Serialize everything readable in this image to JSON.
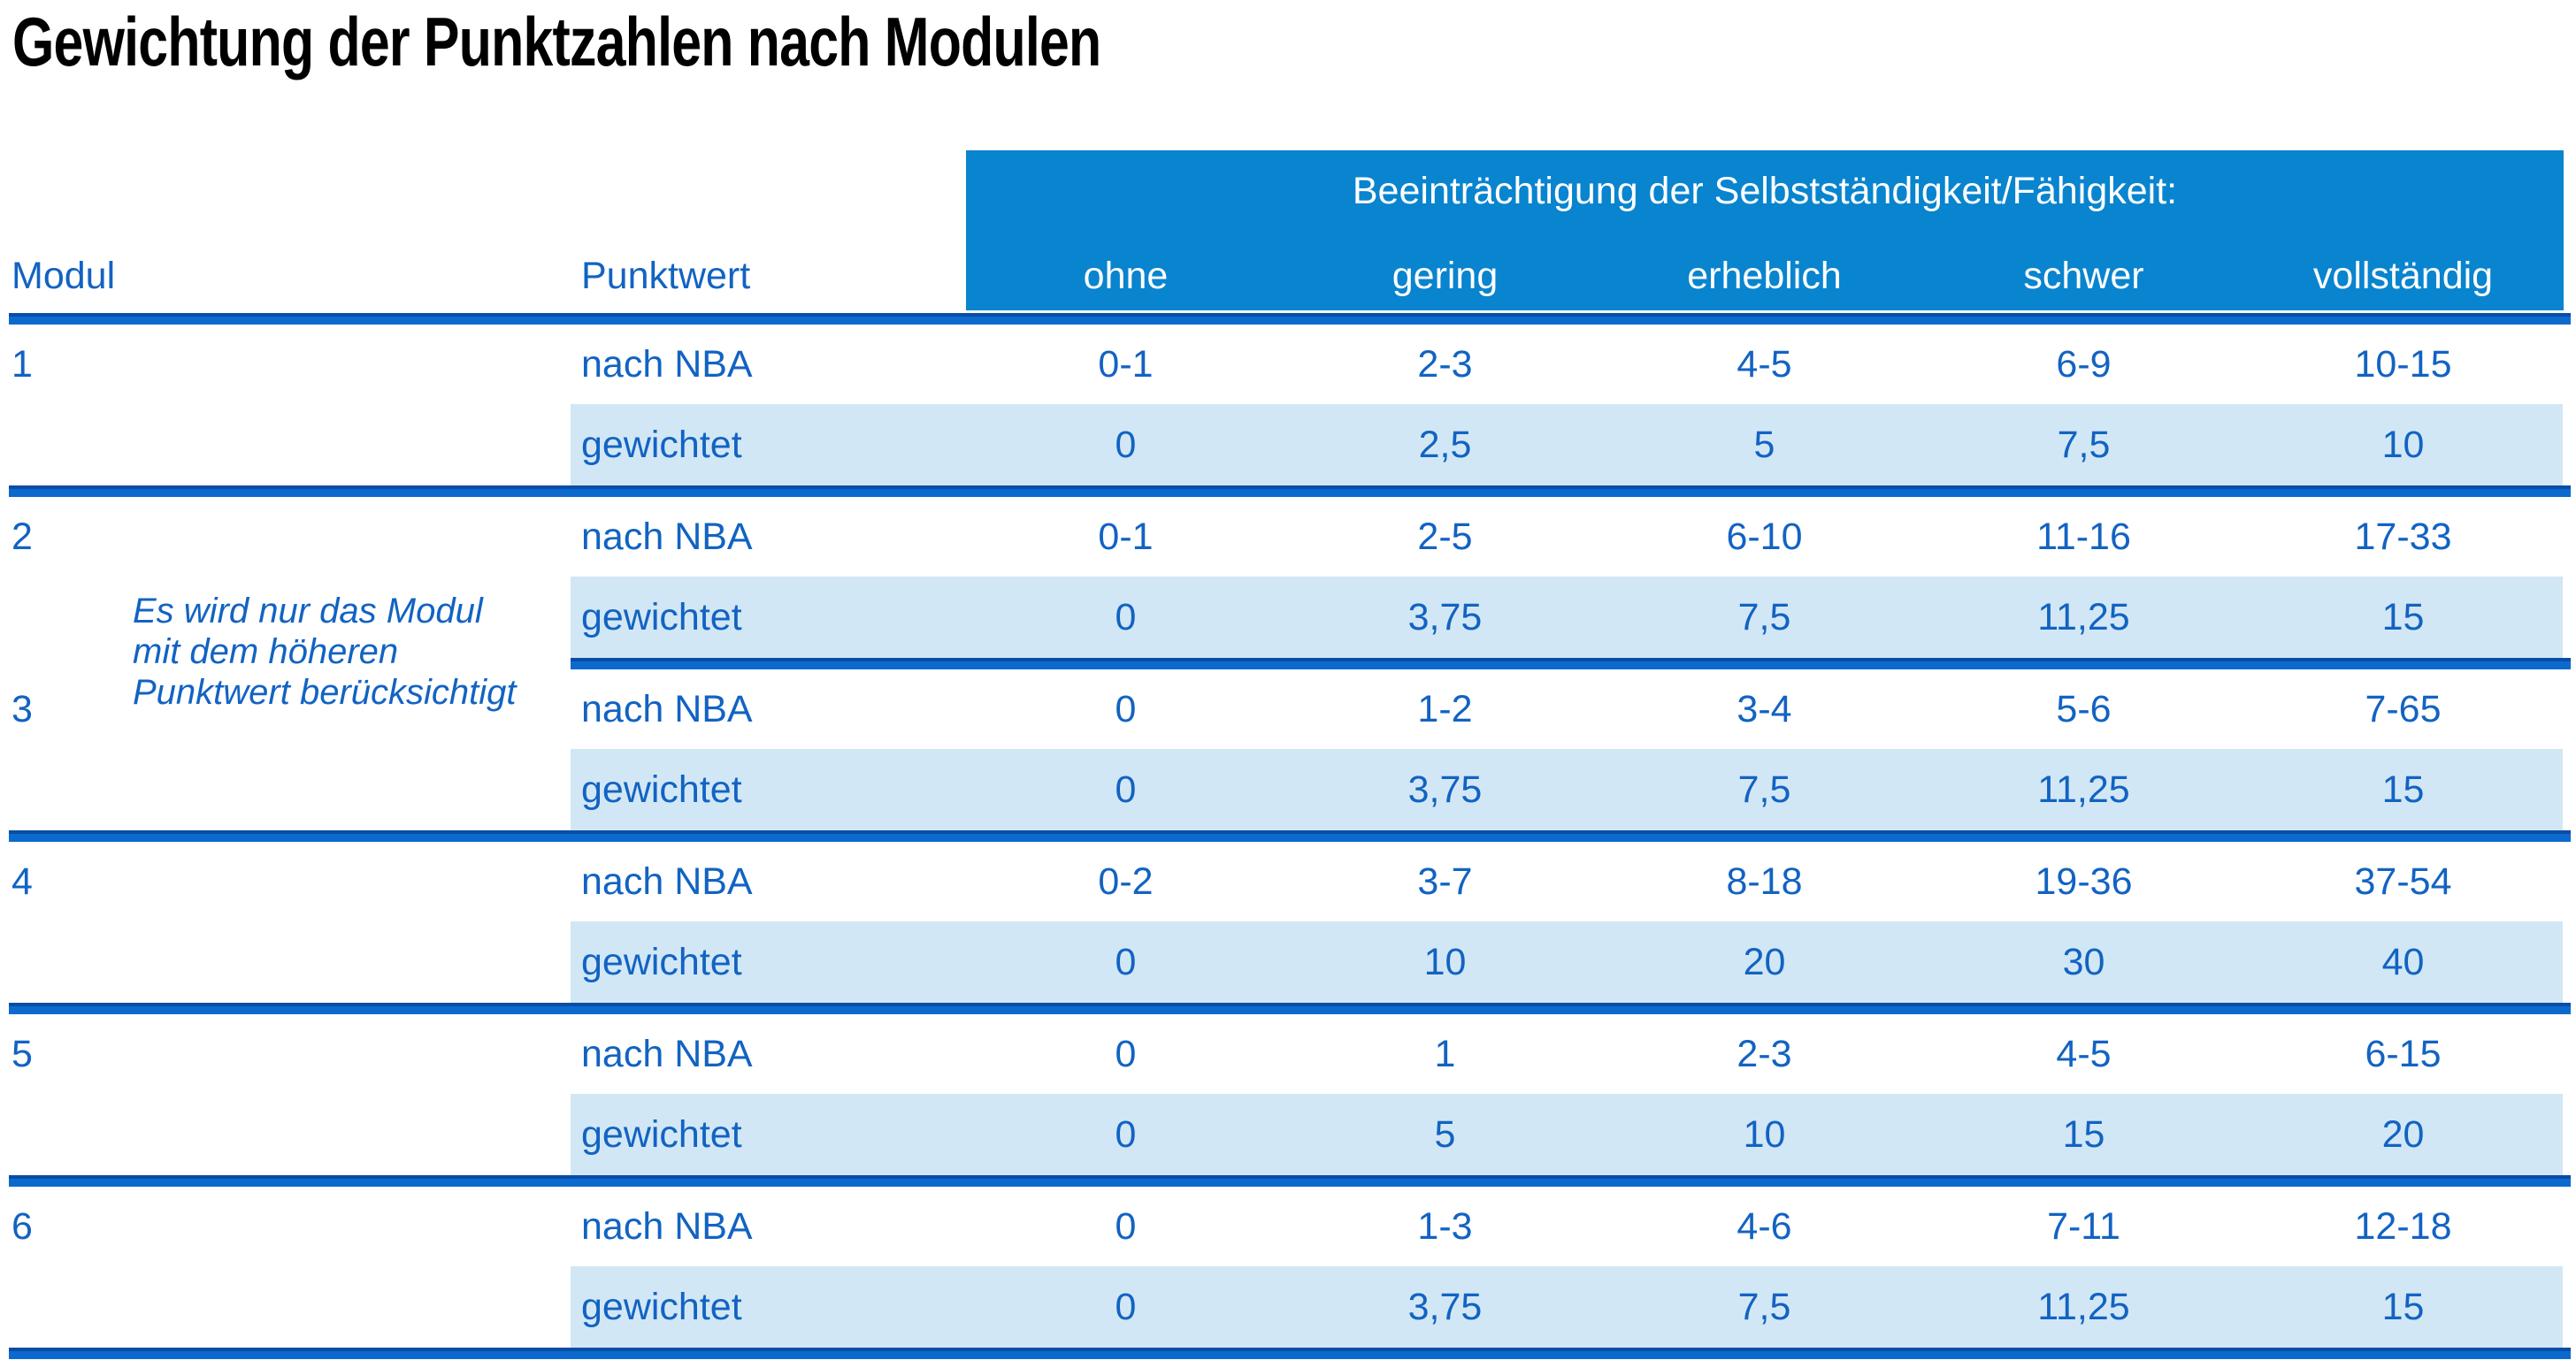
{
  "title": "Gewichtung der Punktzahlen nach Modulen",
  "table": {
    "header": {
      "modul": "Modul",
      "punktwert": "Punktwert",
      "impairment_group_label": "Beeinträchtigung der Selbstständigkeit/Fähigkeit:",
      "severity_levels": [
        "ohne",
        "gering",
        "erheblich",
        "schwer",
        "vollständig"
      ]
    },
    "note_lines": [
      "Es wird nur das Modul",
      "mit dem höheren",
      "Punktwert berücksichtigt"
    ],
    "modules": [
      {
        "modul": "1",
        "rows": [
          {
            "label": "nach NBA",
            "values": [
              "0-1",
              "2-3",
              "4-5",
              "6-9",
              "10-15"
            ]
          },
          {
            "label": "gewichtet",
            "values": [
              "0",
              "2,5",
              "5",
              "7,5",
              "10"
            ]
          }
        ]
      },
      {
        "modul": "2",
        "rows": [
          {
            "label": "nach NBA",
            "values": [
              "0-1",
              "2-5",
              "6-10",
              "11-16",
              "17-33"
            ]
          },
          {
            "label": "gewichtet",
            "values": [
              "0",
              "3,75",
              "7,5",
              "11,25",
              "15"
            ]
          }
        ]
      },
      {
        "modul": "3",
        "rows": [
          {
            "label": "nach NBA",
            "values": [
              "0",
              "1-2",
              "3-4",
              "5-6",
              "7-65"
            ]
          },
          {
            "label": "gewichtet",
            "values": [
              "0",
              "3,75",
              "7,5",
              "11,25",
              "15"
            ]
          }
        ]
      },
      {
        "modul": "4",
        "rows": [
          {
            "label": "nach NBA",
            "values": [
              "0-2",
              "3-7",
              "8-18",
              "19-36",
              "37-54"
            ]
          },
          {
            "label": "gewichtet",
            "values": [
              "0",
              "10",
              "20",
              "30",
              "40"
            ]
          }
        ]
      },
      {
        "modul": "5",
        "rows": [
          {
            "label": "nach NBA",
            "values": [
              "0",
              "1",
              "2-3",
              "4-5",
              "6-15"
            ]
          },
          {
            "label": "gewichtet",
            "values": [
              "0",
              "5",
              "10",
              "15",
              "20"
            ]
          }
        ]
      },
      {
        "modul": "6",
        "rows": [
          {
            "label": "nach NBA",
            "values": [
              "0",
              "1-3",
              "4-6",
              "7-11",
              "12-18"
            ]
          },
          {
            "label": "gewichtet",
            "values": [
              "0",
              "3,75",
              "7,5",
              "11,25",
              "15"
            ]
          }
        ]
      }
    ]
  },
  "colors": {
    "header_band": "#0984cf",
    "header_text": "#ffffff",
    "text_blue": "#1263c2",
    "row_highlight": "#d2e7f5",
    "rule_bright": "#0c6ace",
    "rule_dark": "#0a4da6",
    "title_text": "#000000"
  }
}
